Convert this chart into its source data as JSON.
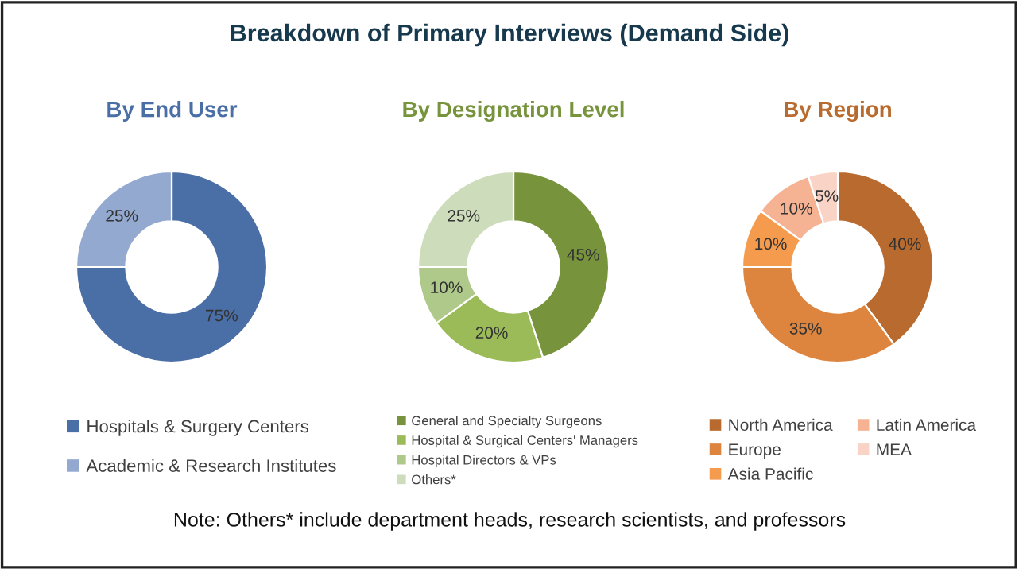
{
  "chart_data": [
    {
      "type": "donut",
      "title": "By End User",
      "annotations": [
        "Breakdown of Primary Interviews (Demand Side)",
        "Note: Others* include department heads, research scientists, and professors"
      ],
      "categories": [
        "Hospitals & Surgery Centers",
        "Academic & Research Institutes"
      ],
      "values": [
        75,
        25
      ],
      "value_labels": [
        "75%",
        "25%"
      ],
      "colors": [
        "#4a6ea6",
        "#93a9cf"
      ],
      "legend": "bottom"
    },
    {
      "type": "donut",
      "title": "By Designation Level",
      "categories": [
        "General and Specialty Surgeons",
        "Hospital & Surgical Centers' Managers",
        "Hospital Directors & VPs",
        "Others*"
      ],
      "values": [
        45,
        20,
        10,
        25
      ],
      "value_labels": [
        "45%",
        "20%",
        "10%",
        "25%"
      ],
      "colors": [
        "#77933c",
        "#9bbb59",
        "#aec98a",
        "#cddcbb"
      ],
      "legend": "bottom"
    },
    {
      "type": "donut",
      "title": "By Region",
      "categories": [
        "North America",
        "Europe",
        "Asia Pacific",
        "Latin America",
        "MEA"
      ],
      "values": [
        40,
        35,
        10,
        10,
        5
      ],
      "value_labels": [
        "40%",
        "35%",
        "10%",
        "10%",
        "5%"
      ],
      "colors": [
        "#b96b2f",
        "#dd853e",
        "#f59b4e",
        "#f6b394",
        "#f9d3c5"
      ],
      "legend": "bottom"
    }
  ]
}
